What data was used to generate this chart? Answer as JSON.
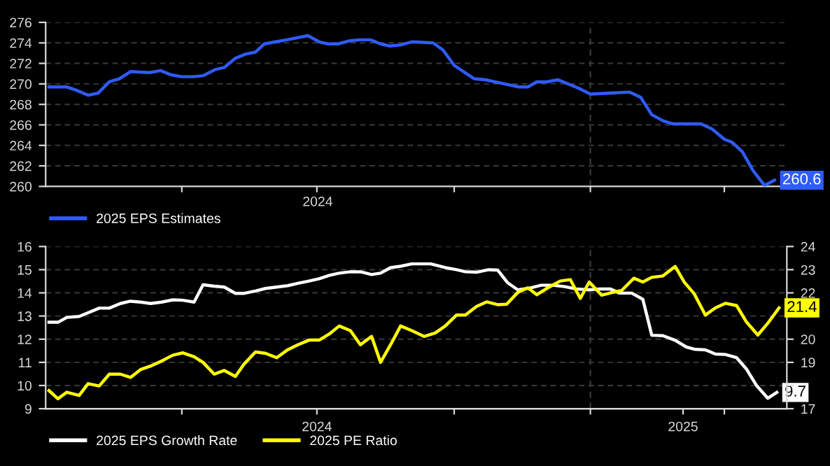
{
  "chart_data": [
    {
      "type": "line",
      "xlim": [
        "2023-09-01",
        "2025-06-26"
      ],
      "ylim": [
        260,
        276
      ],
      "yticks": [
        260,
        262,
        264,
        266,
        268,
        270,
        272,
        274,
        276
      ],
      "xticks": [
        {
          "value": "2024-01-01",
          "label": null
        },
        {
          "value": "2024-05-01",
          "label": null
        },
        {
          "value": "2024-09-01",
          "label": null
        },
        {
          "value": "2025-01-01",
          "label": null
        },
        {
          "value": "2025-05-01",
          "label": null
        }
      ],
      "tick_labels": "y",
      "annotations": [
        "2024"
      ],
      "grid": "y",
      "legend": "bottom",
      "ref_lines": [
        {
          "axis": "x",
          "value": "2025-01-01",
          "color": "#3a3a3a",
          "line_style": "dashed"
        }
      ],
      "series": [
        {
          "name": "2025 EPS Estimates",
          "color": "#2f5bff",
          "x": [
            "2023-09-04",
            "2023-09-20",
            "2023-09-28",
            "2023-10-09",
            "2023-10-18",
            "2023-10-28",
            "2023-11-06",
            "2023-11-16",
            "2023-12-03",
            "2023-12-13",
            "2023-12-22",
            "2024-01-01",
            "2024-01-11",
            "2024-01-20",
            "2024-01-31",
            "2024-02-08",
            "2024-02-18",
            "2024-02-27",
            "2024-03-07",
            "2024-03-15",
            "2024-03-25",
            "2024-04-04",
            "2024-04-23",
            "2024-05-03",
            "2024-05-11",
            "2024-05-20",
            "2024-05-30",
            "2024-06-09",
            "2024-06-18",
            "2024-06-27",
            "2024-07-05",
            "2024-07-15",
            "2024-07-25",
            "2024-08-13",
            "2024-08-22",
            "2024-09-01",
            "2024-09-19",
            "2024-09-29",
            "2024-10-16",
            "2024-10-29",
            "2024-11-06",
            "2024-11-14",
            "2024-11-23",
            "2024-12-03",
            "2024-12-21",
            "2025-01-01",
            "2025-01-19",
            "2025-02-05",
            "2025-02-15",
            "2025-02-25",
            "2025-03-07",
            "2025-03-16",
            "2025-04-10",
            "2025-04-20",
            "2025-05-01",
            "2025-05-08",
            "2025-05-17",
            "2025-05-27",
            "2025-06-06",
            "2025-06-15"
          ],
          "values": [
            269.7,
            269.7,
            269.4,
            268.9,
            269.1,
            270.2,
            270.5,
            271.2,
            271.1,
            271.3,
            270.9,
            270.7,
            270.7,
            270.8,
            271.4,
            271.6,
            272.5,
            272.9,
            273.1,
            273.9,
            274.1,
            274.3,
            274.7,
            274.1,
            273.9,
            273.9,
            274.2,
            274.3,
            274.3,
            273.9,
            273.7,
            273.8,
            274.1,
            274.0,
            273.3,
            271.8,
            270.5,
            270.4,
            270.0,
            269.7,
            269.7,
            270.2,
            270.2,
            270.4,
            269.6,
            269.0,
            269.1,
            269.2,
            268.7,
            267.0,
            266.4,
            266.1,
            266.1,
            265.6,
            264.6,
            264.3,
            263.4,
            261.5,
            260.1,
            260.6
          ],
          "value_labels": [
            null,
            null,
            null,
            null,
            null,
            null,
            null,
            null,
            null,
            null,
            null,
            null,
            null,
            null,
            null,
            null,
            null,
            null,
            null,
            null,
            null,
            null,
            null,
            null,
            null,
            null,
            null,
            null,
            null,
            null,
            null,
            null,
            null,
            null,
            null,
            null,
            null,
            null,
            null,
            null,
            null,
            null,
            null,
            null,
            null,
            null,
            null,
            null,
            null,
            null,
            null,
            null,
            null,
            null,
            null,
            null,
            null,
            null,
            null,
            "260.6"
          ]
        }
      ]
    },
    {
      "type": "line",
      "xlim": [
        "2023-09-01",
        "2025-06-26"
      ],
      "ylim": [
        9,
        16
      ],
      "yticks": [
        9,
        10,
        11,
        12,
        13,
        14,
        15,
        16
      ],
      "y2lim": [
        17,
        24
      ],
      "y2ticks": [
        17,
        {
          "value": 18,
          "label": null
        },
        19,
        20,
        {
          "value": 21,
          "label": null
        },
        22,
        23,
        24
      ],
      "xticks": [
        {
          "value": "2024-01-01",
          "label": null
        },
        {
          "value": "2024-05-01",
          "label": "2024"
        },
        {
          "value": "2024-09-01",
          "label": null
        },
        {
          "value": "2025-01-01",
          "label": null
        },
        {
          "value": "2025-03-25",
          "label": "2025"
        },
        {
          "value": "2025-05-01",
          "label": null
        }
      ],
      "grid": "y",
      "legend": "bottom",
      "ref_lines": [
        {
          "axis": "x",
          "value": "2025-01-01",
          "color": "#3a3a3a",
          "line_style": "dashed"
        }
      ],
      "series": [
        {
          "name": "2025 EPS Growth Rate",
          "color": "#ffffff",
          "x": [
            "2023-09-04",
            "2023-09-12",
            "2023-09-20",
            "2023-10-01",
            "2023-10-09",
            "2023-10-19",
            "2023-10-28",
            "2023-11-07",
            "2023-11-16",
            "2023-11-25",
            "2023-12-04",
            "2023-12-14",
            "2023-12-24",
            "2024-01-02",
            "2024-01-12",
            "2024-01-20",
            "2024-01-30",
            "2024-02-08",
            "2024-02-18",
            "2024-02-26",
            "2024-03-07",
            "2024-03-16",
            "2024-03-26",
            "2024-04-05",
            "2024-04-14",
            "2024-04-24",
            "2024-05-03",
            "2024-05-12",
            "2024-05-21",
            "2024-05-31",
            "2024-06-09",
            "2024-06-19",
            "2024-06-27",
            "2024-07-06",
            "2024-07-15",
            "2024-07-25",
            "2024-08-11",
            "2024-08-24",
            "2024-09-03",
            "2024-09-11",
            "2024-09-21",
            "2024-10-02",
            "2024-10-10",
            "2024-10-19",
            "2024-10-28",
            "2024-11-08",
            "2024-11-18",
            "2024-11-28",
            "2024-12-09",
            "2024-12-19",
            "2024-12-31",
            "2025-01-10",
            "2025-01-19",
            "2025-01-27",
            "2025-02-07",
            "2025-02-17",
            "2025-02-25",
            "2025-03-07",
            "2025-03-18",
            "2025-03-28",
            "2025-04-05",
            "2025-04-14",
            "2025-04-23",
            "2025-05-02",
            "2025-05-12",
            "2025-05-21",
            "2025-05-30",
            "2025-06-09",
            "2025-06-17"
          ],
          "values": [
            12.73,
            12.73,
            12.94,
            12.98,
            13.14,
            13.34,
            13.34,
            13.54,
            13.64,
            13.6,
            13.54,
            13.6,
            13.7,
            13.68,
            13.6,
            14.35,
            14.29,
            14.25,
            13.98,
            13.98,
            14.08,
            14.19,
            14.25,
            14.31,
            14.41,
            14.51,
            14.61,
            14.75,
            14.85,
            14.91,
            14.91,
            14.79,
            14.85,
            15.09,
            15.15,
            15.25,
            15.25,
            15.09,
            15.0,
            14.91,
            14.89,
            15.0,
            14.98,
            14.43,
            14.13,
            14.21,
            14.33,
            14.33,
            14.27,
            14.17,
            14.13,
            14.17,
            14.17,
            13.99,
            13.99,
            13.72,
            12.17,
            12.15,
            11.95,
            11.66,
            11.56,
            11.54,
            11.36,
            11.34,
            11.2,
            10.7,
            9.99,
            9.45,
            9.7
          ],
          "value_labels": [
            null,
            null,
            null,
            null,
            null,
            null,
            null,
            null,
            null,
            null,
            null,
            null,
            null,
            null,
            null,
            null,
            null,
            null,
            null,
            null,
            null,
            null,
            null,
            null,
            null,
            null,
            null,
            null,
            null,
            null,
            null,
            null,
            null,
            null,
            null,
            null,
            null,
            null,
            null,
            null,
            null,
            null,
            null,
            null,
            null,
            null,
            null,
            null,
            null,
            null,
            null,
            null,
            null,
            null,
            null,
            null,
            null,
            null,
            null,
            null,
            null,
            null,
            null,
            null,
            null,
            null,
            null,
            null,
            "9.7"
          ]
        },
        {
          "name": "2025 PE Ratio",
          "color": "#ffff00",
          "axis": "y2",
          "x": [
            "2023-09-04",
            "2023-09-12",
            "2023-09-20",
            "2023-10-01",
            "2023-10-09",
            "2023-10-19",
            "2023-10-28",
            "2023-11-07",
            "2023-11-16",
            "2023-11-25",
            "2023-12-04",
            "2023-12-14",
            "2023-12-24",
            "2024-01-02",
            "2024-01-12",
            "2024-01-20",
            "2024-01-30",
            "2024-02-08",
            "2024-02-18",
            "2024-02-26",
            "2024-03-07",
            "2024-03-16",
            "2024-03-26",
            "2024-04-05",
            "2024-04-14",
            "2024-04-24",
            "2024-05-03",
            "2024-05-12",
            "2024-05-21",
            "2024-05-31",
            "2024-06-09",
            "2024-06-19",
            "2024-06-27",
            "2024-07-06",
            "2024-07-15",
            "2024-07-25",
            "2024-08-05",
            "2024-08-15",
            "2024-08-24",
            "2024-09-03",
            "2024-09-11",
            "2024-09-21",
            "2024-09-30",
            "2024-10-10",
            "2024-10-18",
            "2024-10-28",
            "2024-11-06",
            "2024-11-14",
            "2024-11-24",
            "2024-12-05",
            "2024-12-14",
            "2024-12-23",
            "2024-12-31",
            "2025-01-11",
            "2025-01-19",
            "2025-01-29",
            "2025-02-09",
            "2025-02-17",
            "2025-02-25",
            "2025-03-07",
            "2025-03-18",
            "2025-03-26",
            "2025-04-04",
            "2025-04-14",
            "2025-04-23",
            "2025-05-02",
            "2025-05-12",
            "2025-05-21",
            "2025-05-31",
            "2025-06-09",
            "2025-06-19"
          ],
          "values": [
            17.78,
            17.43,
            17.71,
            17.57,
            18.08,
            17.98,
            18.49,
            18.49,
            18.35,
            18.69,
            18.84,
            19.06,
            19.31,
            19.41,
            19.24,
            19.0,
            18.49,
            18.65,
            18.39,
            18.94,
            19.45,
            19.39,
            19.2,
            19.55,
            19.76,
            19.96,
            19.96,
            20.22,
            20.57,
            20.37,
            19.76,
            20.12,
            19.0,
            19.76,
            20.57,
            20.37,
            20.12,
            20.27,
            20.57,
            21.04,
            21.04,
            21.41,
            21.61,
            21.49,
            21.51,
            22.02,
            22.22,
            21.92,
            22.22,
            22.51,
            22.57,
            21.76,
            22.47,
            21.9,
            22.0,
            22.1,
            22.63,
            22.47,
            22.67,
            22.73,
            23.14,
            22.47,
            21.96,
            21.04,
            21.35,
            21.55,
            21.45,
            20.73,
            20.18,
            20.69,
            21.35
          ],
          "value_labels": [
            null,
            null,
            null,
            null,
            null,
            null,
            null,
            null,
            null,
            null,
            null,
            null,
            null,
            null,
            null,
            null,
            null,
            null,
            null,
            null,
            null,
            null,
            null,
            null,
            null,
            null,
            null,
            null,
            null,
            null,
            null,
            null,
            null,
            null,
            null,
            null,
            null,
            null,
            null,
            null,
            null,
            null,
            null,
            null,
            null,
            null,
            null,
            null,
            null,
            null,
            null,
            null,
            null,
            null,
            null,
            null,
            null,
            null,
            null,
            null,
            null,
            null,
            null,
            null,
            null,
            null,
            null,
            null,
            null,
            null,
            "21.4"
          ]
        }
      ]
    }
  ]
}
